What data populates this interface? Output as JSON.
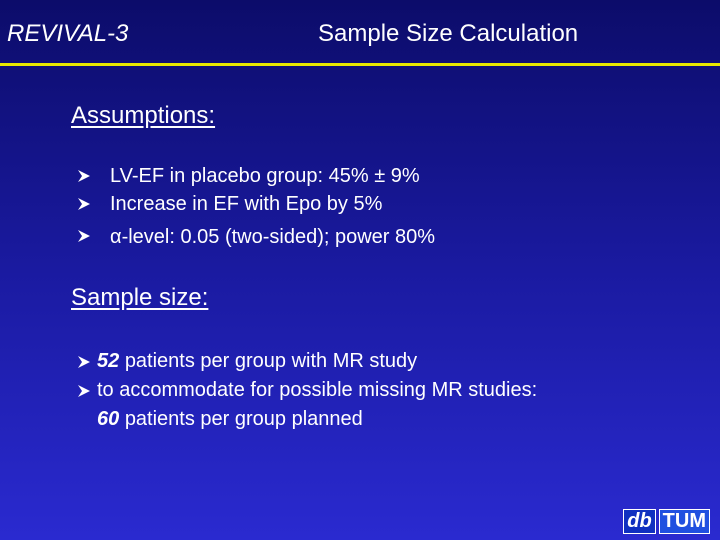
{
  "header": {
    "tag": "REVIVAL-3",
    "title": "Sample Size Calculation"
  },
  "assumptions": {
    "heading": "Assumptions:",
    "bullets": [
      "LV-EF in placebo group: 45% ± 9%",
      "Increase in EF with Epo by 5%",
      "α-level: 0.05 (two-sided); power 80%"
    ]
  },
  "sample_size": {
    "heading": "Sample size:",
    "bullets": [
      {
        "emphasis": "52",
        "text": "patients per group with MR study"
      },
      {
        "text": "to accommodate for possible missing MR studies:",
        "emphasis": "60",
        "continuation": "patients per group planned"
      }
    ]
  },
  "logo": {
    "left": "db",
    "right": "TUM"
  }
}
